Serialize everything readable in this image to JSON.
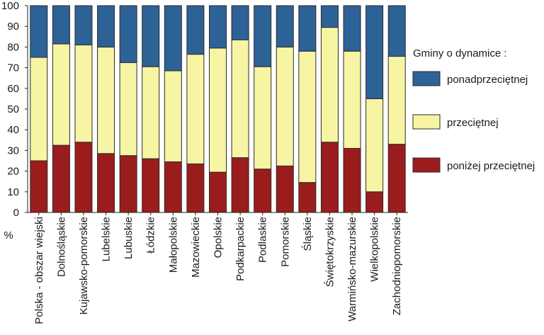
{
  "chart_data": {
    "type": "bar",
    "stacked": true,
    "percent_stacked": true,
    "y_unit": "%",
    "ylim": [
      0,
      100
    ],
    "y_ticks": [
      0,
      10,
      20,
      30,
      40,
      50,
      60,
      70,
      80,
      90,
      100
    ],
    "grid": false,
    "legend_title": "Gminy o dynamice :",
    "legend_position": "right",
    "categories": [
      "Polska - obszar wiejski",
      "Dolnośląskie",
      "Kujawsko-pomorskie",
      "Lubelskie",
      "Lubuskie",
      "Łódzkie",
      "Małopolskie",
      "Mazowieckie",
      "Opolskie",
      "Podkarpackie",
      "Podlaskie",
      "Pomorskie",
      "Śląskie",
      "Świętokrzyskie",
      "Warmińsko-mazurskie",
      "Wielkopolskie",
      "Zachodniopomorskie"
    ],
    "series": [
      {
        "name": "poniżej przeciętnej",
        "color": "#9b1c1c",
        "values": [
          25,
          32.5,
          34,
          28.5,
          27.5,
          26,
          24.5,
          23.5,
          19.5,
          26.5,
          21,
          22.5,
          14.5,
          34,
          31,
          10,
          33
        ]
      },
      {
        "name": "przeciętnej",
        "color": "#f7f5a3",
        "values": [
          50,
          49,
          47,
          51.5,
          45,
          44.5,
          44,
          53,
          60,
          57,
          49.5,
          57.5,
          63.5,
          55.5,
          47,
          45,
          42.5
        ]
      },
      {
        "name": "ponadprzeciętnej",
        "color": "#2d6296",
        "values": [
          25,
          18.5,
          19,
          20,
          27.5,
          29.5,
          31.5,
          23.5,
          20.5,
          16.5,
          29.5,
          20,
          22,
          10.5,
          22,
          45,
          24.5
        ]
      }
    ]
  }
}
